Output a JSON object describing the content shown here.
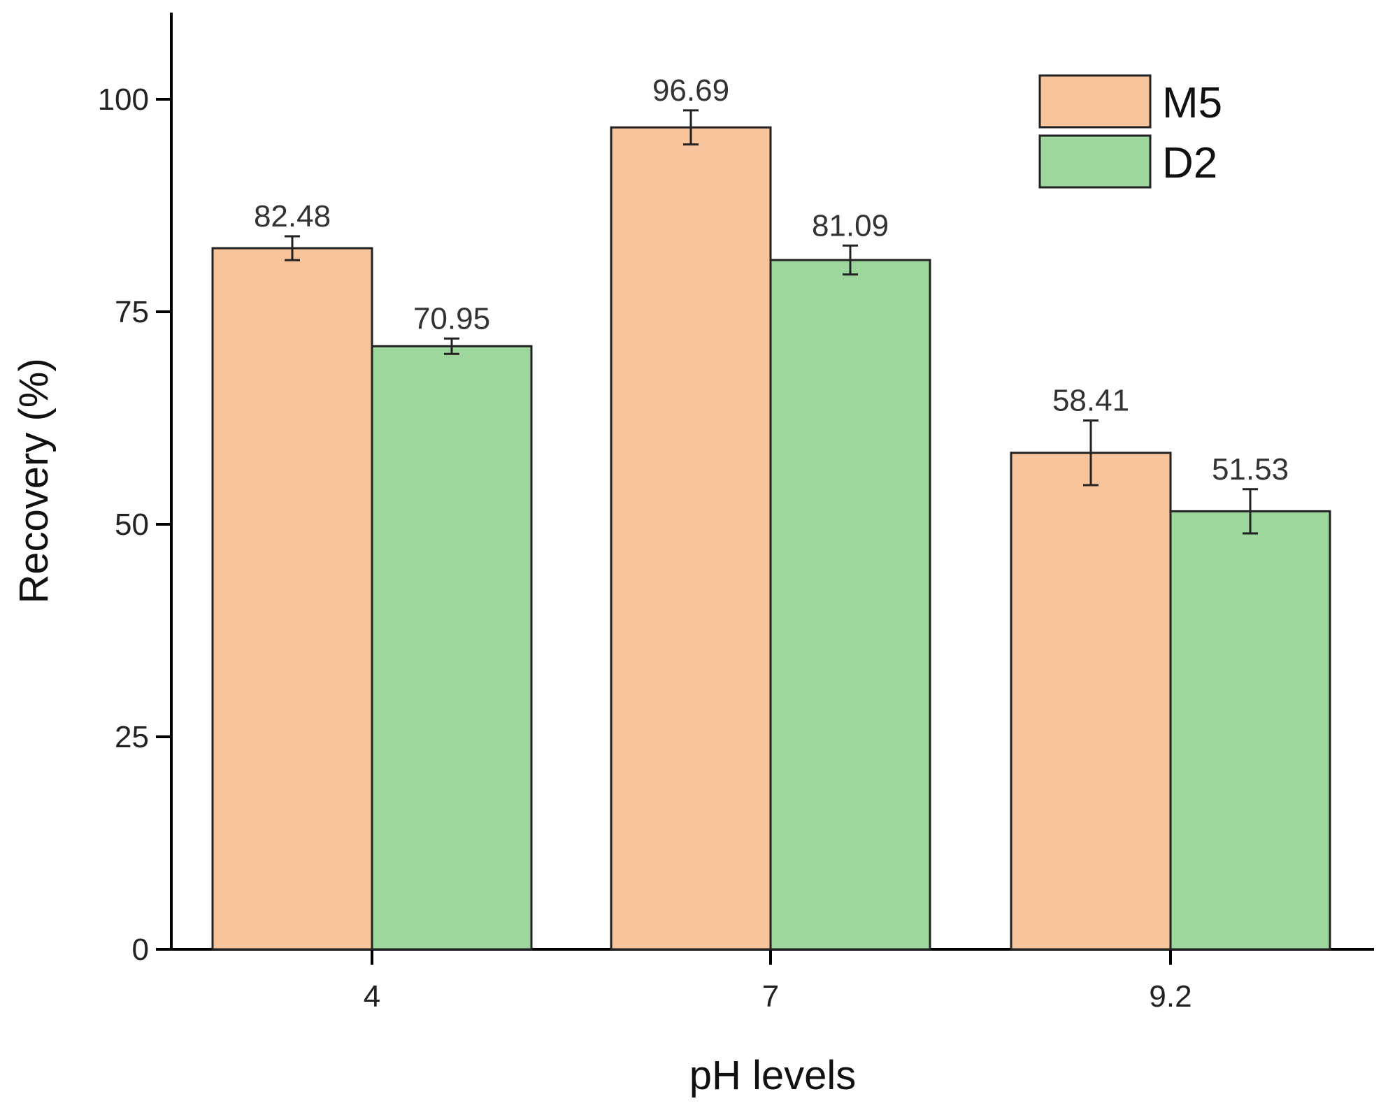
{
  "chart_data": {
    "type": "bar",
    "xlabel": "pH levels",
    "ylabel": "Recovery (%)",
    "ylim": [
      0,
      110
    ],
    "yticks": [
      0,
      25,
      50,
      75,
      100
    ],
    "categories": [
      "4",
      "7",
      "9.2"
    ],
    "series": [
      {
        "name": "M5",
        "color": "#F8C49B",
        "values": [
          82.48,
          96.69,
          58.41
        ],
        "errors": [
          1.4,
          2.0,
          3.8
        ],
        "labels": [
          "82.48",
          "96.69",
          "58.41"
        ]
      },
      {
        "name": "D2",
        "color": "#9DD79D",
        "values": [
          70.95,
          81.09,
          51.53
        ],
        "errors": [
          0.9,
          1.7,
          2.6
        ],
        "labels": [
          "70.95",
          "81.09",
          "51.53"
        ]
      }
    ],
    "legend_position": "top-right"
  }
}
